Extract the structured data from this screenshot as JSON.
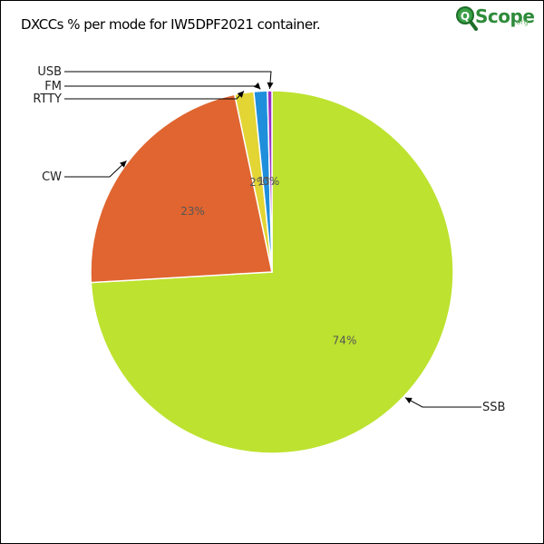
{
  "title": "DXCCs % per mode for IW5DPF2021 container.",
  "logo": {
    "brand": "Scope",
    "tld": ".org"
  },
  "chart_data": {
    "type": "pie",
    "title": "DXCCs % per mode for IW5DPF2021 container.",
    "slices": [
      {
        "label": "SSB",
        "value": 74.0,
        "pct_label": "74%",
        "color": "#bde22f"
      },
      {
        "label": "CW",
        "value": 22.6,
        "pct_label": "23%",
        "color": "#e06530"
      },
      {
        "label": "RTTY",
        "value": 1.7,
        "pct_label": "2%",
        "color": "#e2d534"
      },
      {
        "label": "FM",
        "value": 1.2,
        "pct_label": "1%",
        "color": "#1f8fdc"
      },
      {
        "label": "USB",
        "value": 0.4,
        "pct_label": "0%",
        "color": "#9a2fc4"
      }
    ],
    "start_angle_deg": 0,
    "direction": "clockwise"
  }
}
